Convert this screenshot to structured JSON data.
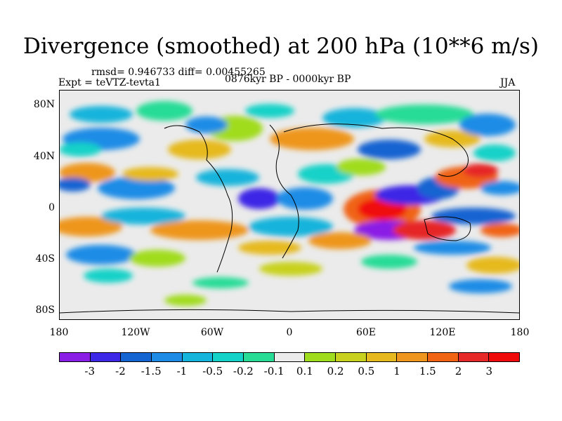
{
  "title": "Divergence (smoothed) at 200 hPa (10**6 m/s)",
  "stats": "rmsd= 0.946733 diff= 0.00455265",
  "experiment": "Expt = teVTZ-tevta1",
  "period": "0876kyr BP - 0000kyr BP",
  "season": "JJA",
  "lat_labels": [
    "80N",
    "40N",
    "0",
    "40S",
    "80S"
  ],
  "lon_labels": [
    "180",
    "120W",
    "60W",
    "0",
    "60E",
    "120E",
    "180"
  ],
  "colorbar": {
    "levels": [
      "-3",
      "-2",
      "-1.5",
      "-1",
      "-0.5",
      "-0.2",
      "-0.1",
      "0.1",
      "0.2",
      "0.5",
      "1",
      "1.5",
      "2",
      "3"
    ],
    "colors": [
      "#8a1ee6",
      "#3c28e6",
      "#1464d2",
      "#1e8ce6",
      "#14b4dc",
      "#14d2c8",
      "#28dc96",
      "#ebebeb",
      "#a0dc1e",
      "#c8d21e",
      "#e6b91e",
      "#ee961e",
      "#f06414",
      "#e62828",
      "#f00a0a"
    ]
  }
}
